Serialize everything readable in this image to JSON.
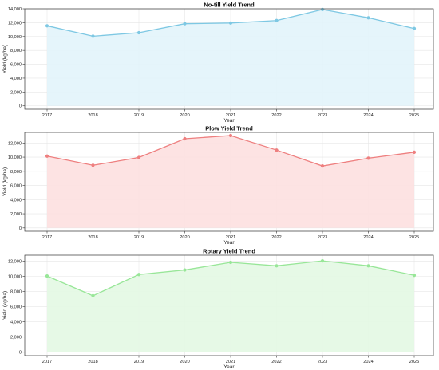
{
  "chart_data": [
    {
      "type": "area",
      "title": "No-till Yield Trend",
      "xlabel": "Year",
      "ylabel": "Yield (kg/ha)",
      "categories": [
        "2017",
        "2018",
        "2019",
        "2020",
        "2021",
        "2022",
        "2023",
        "2024",
        "2025"
      ],
      "values": [
        11550,
        10050,
        10550,
        11850,
        11950,
        12300,
        13900,
        12700,
        11150
      ],
      "ylim": [
        0,
        14000
      ],
      "yticks": [
        0,
        2000,
        4000,
        6000,
        8000,
        10000,
        12000,
        14000
      ],
      "ytick_labels": [
        "0",
        "2,000",
        "4,000",
        "6,000",
        "8,000",
        "10,000",
        "12,000",
        "14,000"
      ],
      "grid": true,
      "colors": {
        "line": "#7ec8e3",
        "fill": "#e2f4fb"
      }
    },
    {
      "type": "area",
      "title": "Plow Yield Trend",
      "xlabel": "Year",
      "ylabel": "Yield (kg/ha)",
      "categories": [
        "2017",
        "2018",
        "2019",
        "2020",
        "2021",
        "2022",
        "2023",
        "2024",
        "2025"
      ],
      "values": [
        10150,
        8850,
        9950,
        12600,
        13050,
        11000,
        8750,
        9850,
        10700
      ],
      "ylim": [
        0,
        13500
      ],
      "yticks": [
        0,
        2000,
        4000,
        6000,
        8000,
        10000,
        12000
      ],
      "ytick_labels": [
        "0",
        "2,000",
        "4,000",
        "6,000",
        "8,000",
        "10,000",
        "12,000"
      ],
      "grid": true,
      "colors": {
        "line": "#ee7f7f",
        "fill": "#fde0e0"
      }
    },
    {
      "type": "area",
      "title": "Rotary Yield Trend",
      "xlabel": "Year",
      "ylabel": "Yield (kg/ha)",
      "categories": [
        "2017",
        "2018",
        "2019",
        "2020",
        "2021",
        "2022",
        "2023",
        "2024",
        "2025"
      ],
      "values": [
        10050,
        7450,
        10250,
        10850,
        11850,
        11400,
        12050,
        11400,
        10150
      ],
      "ylim": [
        0,
        12800
      ],
      "yticks": [
        0,
        2000,
        4000,
        6000,
        8000,
        10000,
        12000
      ],
      "ytick_labels": [
        "0",
        "2,000",
        "4,000",
        "6,000",
        "8,000",
        "10,000",
        "12,000"
      ],
      "grid": true,
      "colors": {
        "line": "#98e698",
        "fill": "#e3f8e3"
      }
    }
  ]
}
